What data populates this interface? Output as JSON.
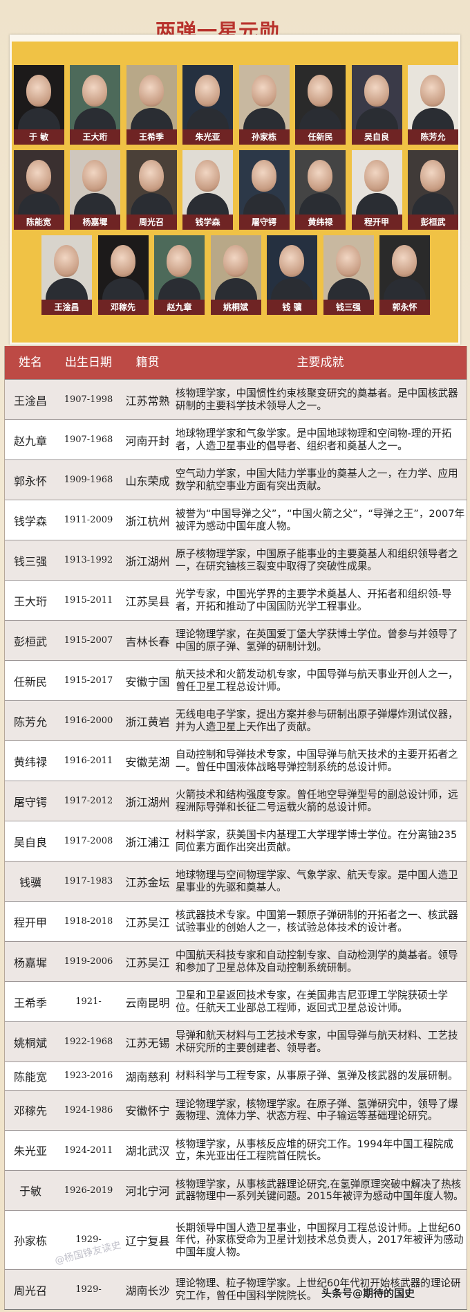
{
  "title": "两弹一星元勋",
  "portraits": {
    "row1": [
      "于 敏",
      "王大珩",
      "王希季",
      "朱光亚",
      "孙家栋",
      "任新民",
      "吴自良",
      "陈芳允"
    ],
    "row2": [
      "陈能宽",
      "杨嘉墀",
      "周光召",
      "钱学森",
      "屠守锷",
      "黄纬禄",
      "程开甲",
      "彭桓武"
    ],
    "row3": [
      "王淦昌",
      "邓稼先",
      "赵九章",
      "姚桐斌",
      "钱 骥",
      "钱三强",
      "郭永怀"
    ]
  },
  "table": {
    "headers": {
      "name": "姓名",
      "birth": "出生日期",
      "origin": "籍贯",
      "achievement": "主要成就"
    },
    "rows": [
      {
        "name": "王淦昌",
        "years": "1907-1998",
        "origin": "江苏常熟",
        "achievement": "核物理学家，中国惯性约束核聚变研究的奠基者。是中国核武器研制的主要科学技术领导人之一。"
      },
      {
        "name": "赵九章",
        "years": "1907-1968",
        "origin": "河南开封",
        "achievement": "地球物理学家和气象学家。是中国地球物理和空间物-理的开拓者，人造卫星事业的倡导者、组织者和奠基人之一。"
      },
      {
        "name": "郭永怀",
        "years": "1909-1968",
        "origin": "山东荣成",
        "achievement": "空气动力学家，中国大陆力学事业的奠基人之一，在力学、应用数学和航空事业方面有突出贡献。"
      },
      {
        "name": "钱学森",
        "years": "1911-2009",
        "origin": "浙江杭州",
        "achievement": "被誉为“中国导弹之父”，“中国火箭之父”，“导弹之王”，2007年被评为感动中国年度人物。"
      },
      {
        "name": "钱三强",
        "years": "1913-1992",
        "origin": "浙江湖州",
        "achievement": "原子核物理学家，中国原子能事业的主要奠基人和组织领导者之一，在研究铀核三裂变中取得了突破性成果。"
      },
      {
        "name": "王大珩",
        "years": "1915-2011",
        "origin": "江苏吴县",
        "achievement": "光学专家，中国光学界的主要学术奠基人、开拓者和组织领-导者，开拓和推动了中国国防光学工程事业。"
      },
      {
        "name": "彭桓武",
        "years": "1915-2007",
        "origin": "吉林长春",
        "achievement": "理论物理学家，在英国爱丁堡大学获博士学位。曾参与并领导了中国的原子弹、氢弹的研制计划。"
      },
      {
        "name": "任新民",
        "years": "1915-2017",
        "origin": "安徽宁国",
        "achievement": "航天技术和火箭发动机专家，中国导弹与航天事业开创人之一，曾任卫星工程总设计师。"
      },
      {
        "name": "陈芳允",
        "years": "1916-2000",
        "origin": "浙江黄岩",
        "achievement": "无线电电子学家，提出方案并参与研制出原子弹爆炸测试仪器，并为人造卫星上天作出了贡献。"
      },
      {
        "name": "黄纬禄",
        "years": "1916-2011",
        "origin": "安徽芜湖",
        "achievement": "自动控制和导弹技术专家，中国导弹与航天技术的主要开拓者之一。曾任中国液体战略导弹控制系统的总设计师。"
      },
      {
        "name": "屠守锷",
        "years": "1917-2012",
        "origin": "浙江湖州",
        "achievement": "火箭技术和结构强度专家。曾任地空导弹型号的副总设计师，远程洲际导弹和长征二号运载火箭的总设计师。"
      },
      {
        "name": "吴自良",
        "years": "1917-2008",
        "origin": "浙江浦江",
        "achievement": "材料学家，获美国卡内基理工大学理学博士学位。在分离铀235同位素方面作出突出贡献。"
      },
      {
        "name": "钱骥",
        "years": "1917-1983",
        "origin": "江苏金坛",
        "achievement": "地球物理与空间物理学家、气象学家、航天专家。是中国人造卫星事业的先驱和奠基人。"
      },
      {
        "name": "程开甲",
        "years": "1918-2018",
        "origin": "江苏吴江",
        "achievement": "核武器技术专家。中国第一颗原子弹研制的开拓者之一、核武器试验事业的创始人之一，核试验总体技术的设计者。"
      },
      {
        "name": "杨嘉墀",
        "years": "1919-2006",
        "origin": "江苏吴江",
        "achievement": "中国航天科技专家和自动控制专家、自动检测学的奠基者。领导和参加了卫星总体及自动控制系统研制。"
      },
      {
        "name": "王希季",
        "years": "1921-",
        "origin": "云南昆明",
        "achievement": "卫星和卫星返回技术专家，在美国弗吉尼亚理工学院获硕士学位。任航天工业部总工程师，返回式卫星总设计师。"
      },
      {
        "name": "姚桐斌",
        "years": "1922-1968",
        "origin": "江苏无锡",
        "achievement": "导弹和航天材料与工艺技术专家，中国导弹与航天材料、工艺技术研究所的主要创建者、领导者。"
      },
      {
        "name": "陈能宽",
        "years": "1923-2016",
        "origin": "湖南慈利",
        "achievement": "材料科学与工程专家，从事原子弹、氢弹及核武器的发展研制。"
      },
      {
        "name": "邓稼先",
        "years": "1924-1986",
        "origin": "安徽怀宁",
        "achievement": "理论物理学家，核物理学家。在原子弹、氢弹研究中，领导了爆轰物理、流体力学、状态方程、中子输运等基础理论研究。"
      },
      {
        "name": "朱光亚",
        "years": "1924-2011",
        "origin": "湖北武汉",
        "achievement": "核物理学家，从事核反应堆的研究工作。1994年中国工程院成立，朱光亚出任工程院首任院长。"
      },
      {
        "name": "于敏",
        "years": "1926-2019",
        "origin": "河北宁河",
        "achievement": "核物理学家，从事核武器理论研究,在氢弹原理突破中解决了热核武器物理中一系列关键问题。2015年被评为感动中国年度人物。"
      },
      {
        "name": "孙家栋",
        "years": "1929-",
        "origin": "辽宁复县",
        "achievement": "长期领导中国人造卫星事业，中国探月工程总设计师。上世纪60年代，孙家栋受命为卫星计划技术总负责人，2017年被评为感动中国年度人物。"
      },
      {
        "name": "周光召",
        "years": "1929-",
        "origin": "湖南长沙",
        "achievement": "理论物理、粒子物理学家。上世纪60年代初开始核武器的理论研究工作，曾任中国科学院院长。"
      }
    ]
  },
  "watermarks": {
    "main": "头条号@期待的国史",
    "faint": "@杨国铮友读史"
  },
  "colors": {
    "title": "#b8322c",
    "header": "#bd4a45",
    "panel": "#f0c245",
    "label": "#6f2424"
  }
}
